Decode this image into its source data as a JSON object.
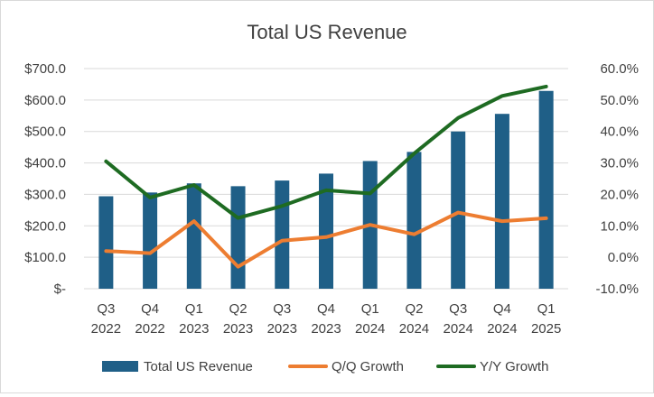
{
  "chart_data": {
    "type": "bar",
    "title": "Total US Revenue",
    "categories": [
      [
        "Q3",
        "2022"
      ],
      [
        "Q4",
        "2022"
      ],
      [
        "Q1",
        "2023"
      ],
      [
        "Q2",
        "2023"
      ],
      [
        "Q3",
        "2023"
      ],
      [
        "Q4",
        "2023"
      ],
      [
        "Q1",
        "2024"
      ],
      [
        "Q2",
        "2024"
      ],
      [
        "Q3",
        "2024"
      ],
      [
        "Q4",
        "2024"
      ],
      [
        "Q1",
        "2025"
      ]
    ],
    "left_axis": {
      "ticks": [
        "$-",
        "$100.0",
        "$200.0",
        "$300.0",
        "$400.0",
        "$500.0",
        "$600.0",
        "$700.0"
      ],
      "ylim": [
        0,
        700
      ]
    },
    "right_axis": {
      "ticks": [
        "-10.0%",
        "0.0%",
        "10.0%",
        "20.0%",
        "30.0%",
        "40.0%",
        "50.0%",
        "60.0%"
      ],
      "ylim": [
        -10,
        60
      ]
    },
    "series": [
      {
        "name": "Total US Revenue",
        "kind": "bar",
        "axis": "left",
        "color": "#1f5f87",
        "values": [
          294,
          306,
          335,
          326,
          344,
          366,
          406,
          435,
          500,
          556,
          629
        ]
      },
      {
        "name": "Q/Q Growth",
        "kind": "line",
        "axis": "right",
        "color": "#ed7d31",
        "values": [
          2.0,
          1.3,
          11.5,
          -3.0,
          5.3,
          6.4,
          10.3,
          7.3,
          14.2,
          11.5,
          12.4
        ]
      },
      {
        "name": "Y/Y Growth",
        "kind": "line",
        "axis": "right",
        "color": "#1e6b22",
        "values": [
          30.5,
          19.0,
          23.0,
          12.5,
          16.3,
          21.3,
          20.3,
          33.0,
          44.3,
          51.3,
          54.3
        ]
      }
    ],
    "grid": true,
    "legend_position": "bottom"
  }
}
